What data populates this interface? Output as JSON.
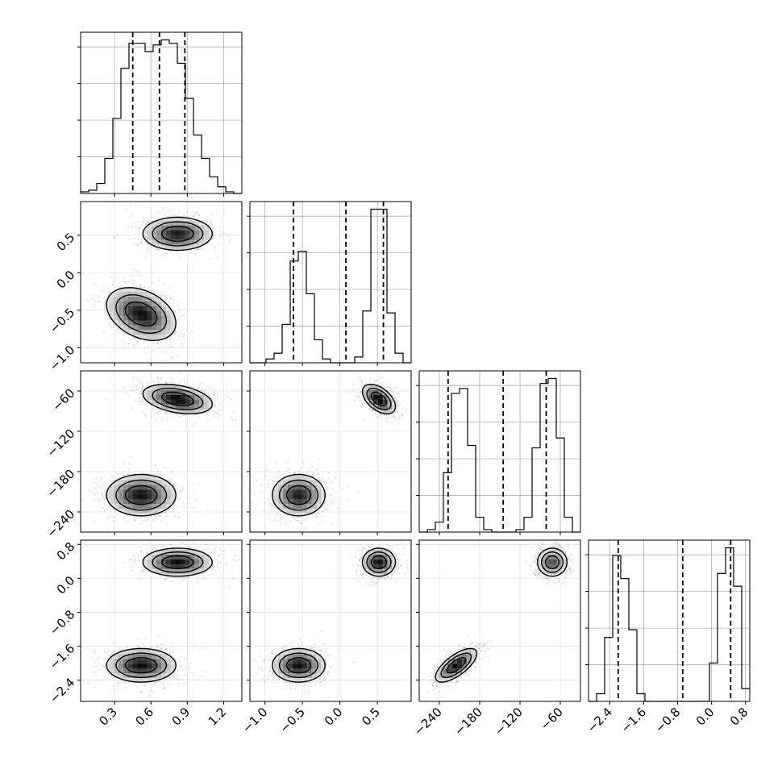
{
  "chart_data": {
    "type": "corner",
    "description_note": "",
    "parameters": [
      {
        "ticks": [
          0.3,
          0.6,
          0.9,
          1.2
        ],
        "tick_labels": [
          "0.3",
          "0.6",
          "0.9",
          "1.2"
        ],
        "range": [
          0.02,
          1.35
        ],
        "quantiles": [
          0.45,
          0.67,
          0.88
        ],
        "hist": {
          "bins": 20,
          "start": 0.02,
          "end": 1.35,
          "counts": [
            1,
            2,
            6,
            21,
            45,
            75,
            90,
            90,
            85,
            89,
            92,
            90,
            78,
            57,
            35,
            21,
            10,
            4,
            1,
            0
          ]
        }
      },
      {
        "ticks": [
          -1.0,
          -0.5,
          0.0,
          0.5
        ],
        "tick_labels": [
          "−1.0",
          "−0.5",
          "0.0",
          "0.5"
        ],
        "range": [
          -1.2,
          0.95
        ],
        "quantiles": [
          -0.62,
          0.08,
          0.58
        ],
        "hist": {
          "bins": 20,
          "start": -1.2,
          "end": 0.95,
          "counts": [
            0,
            0,
            2,
            5,
            20,
            53,
            58,
            36,
            12,
            2,
            0,
            0,
            0,
            3,
            27,
            80,
            80,
            26,
            5,
            0
          ]
        }
      },
      {
        "ticks": [
          -240,
          -180,
          -120,
          -60
        ],
        "tick_labels": [
          "−240",
          "−180",
          "−120",
          "−60"
        ],
        "range": [
          -270,
          -30
        ],
        "quantiles": [
          -227,
          -145,
          -81
        ],
        "hist": {
          "bins": 20,
          "start": -270,
          "end": -30,
          "counts": [
            0,
            1,
            4,
            24,
            56,
            58,
            35,
            6,
            1,
            0,
            0,
            0,
            1,
            6,
            34,
            60,
            62,
            38,
            6,
            0
          ]
        }
      },
      {
        "ticks": [
          -2.4,
          -1.6,
          -0.8,
          0.0,
          0.8
        ],
        "tick_labels": [
          "−2.4",
          "−1.6",
          "−0.8",
          "0.0",
          "0.8"
        ],
        "range": [
          -2.9,
          0.9
        ],
        "quantiles": [
          -2.2,
          -0.68,
          0.45
        ],
        "hist": {
          "bins": 20,
          "start": -2.9,
          "end": 0.9,
          "counts": [
            0,
            3,
            25,
            57,
            48,
            28,
            3,
            0,
            0,
            0,
            0,
            0,
            0,
            0,
            0,
            15,
            50,
            60,
            45,
            5
          ]
        }
      }
    ],
    "modes": [
      {
        "weight": 0.5,
        "mean": [
          0.52,
          -0.55,
          -215,
          -2.05
        ],
        "sd": [
          0.13,
          0.16,
          14,
          0.18
        ]
      },
      {
        "weight": 0.5,
        "mean": [
          0.82,
          0.52,
          -72,
          0.38
        ],
        "sd": [
          0.13,
          0.1,
          10,
          0.15
        ]
      }
    ],
    "pairs": [
      {
        "row": 1,
        "col": 0,
        "corr": [
          -0.35,
          0.0
        ]
      },
      {
        "row": 2,
        "col": 0,
        "corr": [
          0.0,
          -0.35
        ]
      },
      {
        "row": 2,
        "col": 1,
        "corr": [
          0.0,
          -0.5
        ]
      },
      {
        "row": 3,
        "col": 0,
        "corr": [
          0.0,
          0.0
        ]
      },
      {
        "row": 3,
        "col": 1,
        "corr": [
          0.0,
          0.0
        ]
      },
      {
        "row": 3,
        "col": 2,
        "corr": [
          0.7,
          0.0
        ]
      }
    ],
    "grid": true,
    "xlabel": "",
    "ylabel": ""
  }
}
